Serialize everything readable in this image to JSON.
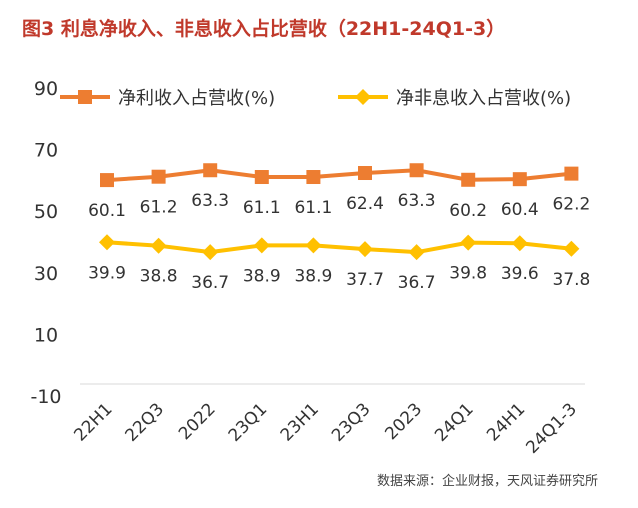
{
  "title": "图3  利息净收入、非息收入占比营收（22H1-24Q1-3）",
  "source": "数据来源：企业财报，天风证券研究所",
  "chart_data": {
    "type": "line",
    "categories": [
      "22H1",
      "22Q3",
      "2022",
      "23Q1",
      "23H1",
      "23Q3",
      "2023",
      "24Q1",
      "24H1",
      "24Q1-3"
    ],
    "y_ticks": [
      "90",
      "70",
      "50",
      "30",
      "10",
      "-10"
    ],
    "ylim": [
      -10,
      90
    ],
    "grid": false,
    "legend_position": "top",
    "series": [
      {
        "name": "净利收入占营收(%)",
        "color": "#ed7d31",
        "marker": "square",
        "values": [
          60.1,
          61.2,
          63.3,
          61.1,
          61.1,
          62.4,
          63.3,
          60.2,
          60.4,
          62.2
        ]
      },
      {
        "name": "净非息收入占营收(%)",
        "color": "#ffc000",
        "marker": "diamond",
        "values": [
          39.9,
          38.8,
          36.7,
          38.9,
          38.9,
          37.7,
          36.7,
          39.8,
          39.6,
          37.8
        ]
      }
    ]
  }
}
